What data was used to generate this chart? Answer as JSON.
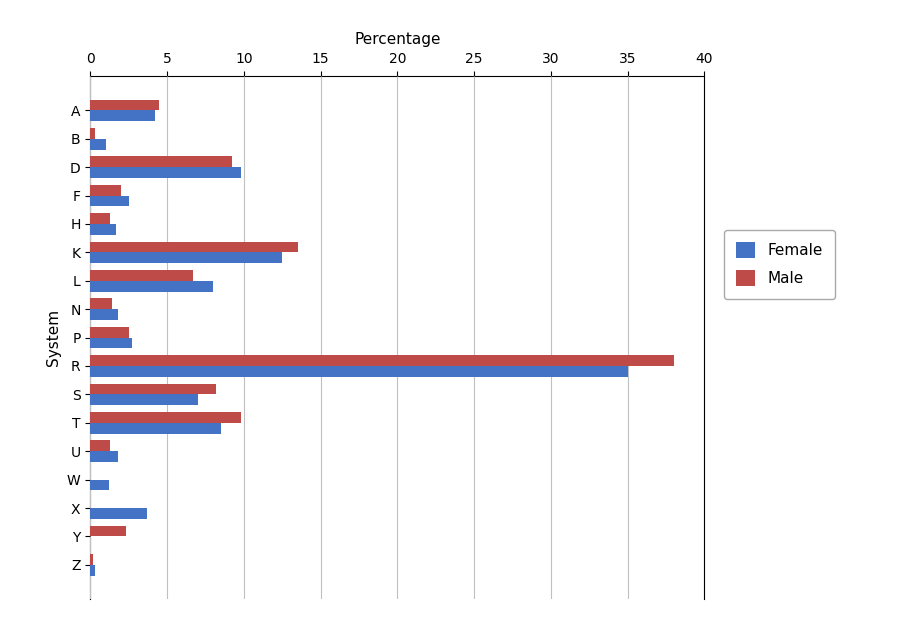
{
  "categories": [
    "A",
    "B",
    "D",
    "F",
    "H",
    "K",
    "L",
    "N",
    "P",
    "R",
    "S",
    "T",
    "U",
    "W",
    "X",
    "Y",
    "Z"
  ],
  "female": [
    4.2,
    1.0,
    9.8,
    2.5,
    1.7,
    12.5,
    8.0,
    1.8,
    2.7,
    35.0,
    7.0,
    8.5,
    1.8,
    1.2,
    3.7,
    0.0,
    0.3
  ],
  "male": [
    4.5,
    0.3,
    9.2,
    2.0,
    1.3,
    13.5,
    6.7,
    1.4,
    2.5,
    38.0,
    8.2,
    9.8,
    1.3,
    0.0,
    0.0,
    2.3,
    0.2
  ],
  "female_color": "#4472C4",
  "male_color": "#BE4B48",
  "xlabel": "Percentage",
  "ylabel": "System",
  "xlim": [
    0,
    40
  ],
  "xticks": [
    0,
    5,
    10,
    15,
    20,
    25,
    30,
    35,
    40
  ],
  "bar_height": 0.38,
  "legend_labels": [
    "Female",
    "Male"
  ],
  "title": "",
  "bg_color": "#FFFFFF",
  "grid_color": "#C0C0C0"
}
